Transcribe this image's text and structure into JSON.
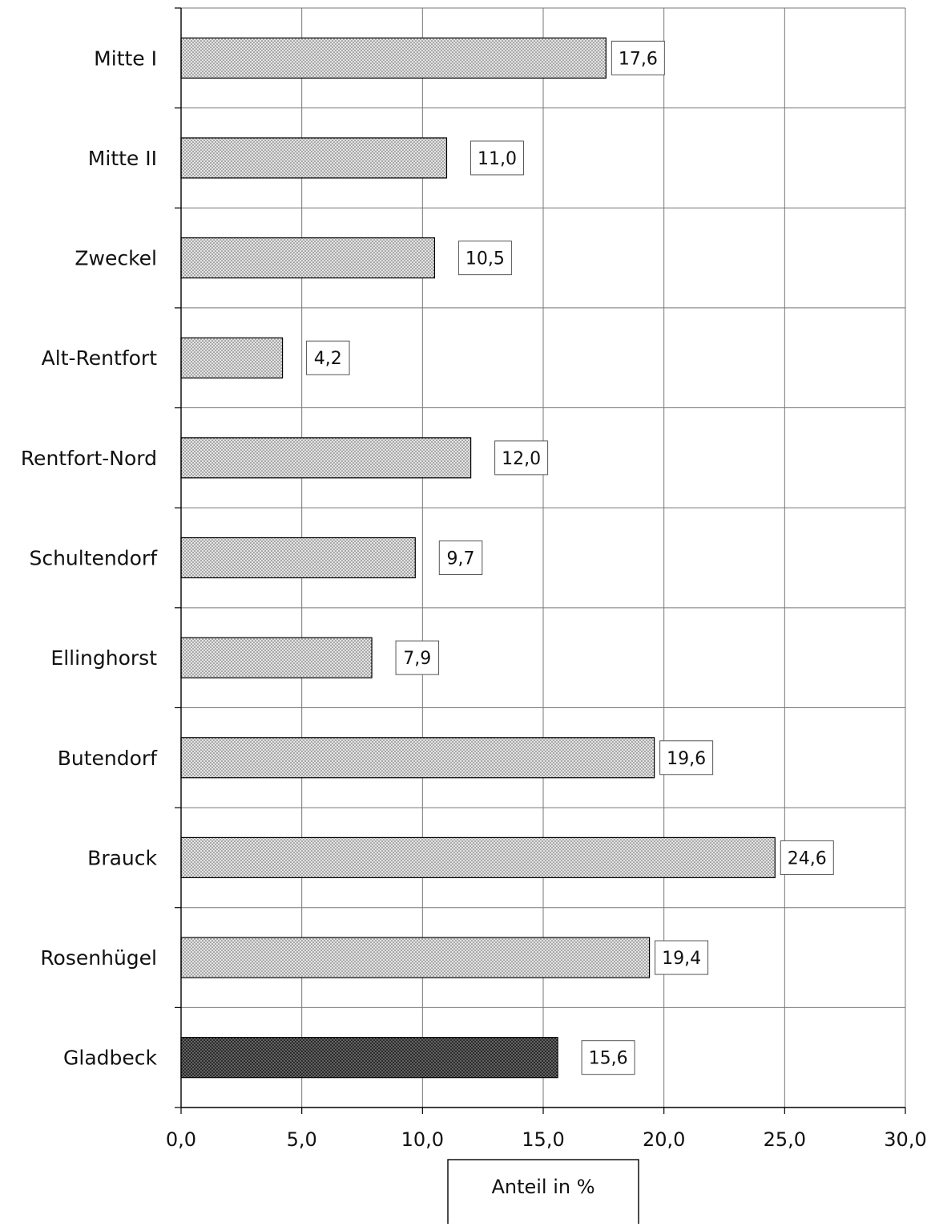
{
  "chart_data": {
    "type": "bar",
    "orientation": "horizontal",
    "categories": [
      "Mitte I",
      "Mitte II",
      "Zweckel",
      "Alt-Rentfort",
      "Rentfort-Nord",
      "Schultendorf",
      "Ellinghorst",
      "Butendorf",
      "Brauck",
      "Rosenhügel",
      "Gladbeck"
    ],
    "values": [
      17.6,
      11.0,
      10.5,
      4.2,
      12.0,
      9.7,
      7.9,
      19.6,
      24.6,
      19.4,
      15.6
    ],
    "value_labels": [
      "17,6",
      "11,0",
      "10,5",
      "4,2",
      "12,0",
      "9,7",
      "7,9",
      "19,6",
      "24,6",
      "19,4",
      "15,6"
    ],
    "highlight_category": "Gladbeck",
    "xlabel": "Anteil in %",
    "ylabel": "",
    "title": "",
    "xlim": [
      0,
      30
    ],
    "xticks": [
      0,
      5,
      10,
      15,
      20,
      25,
      30
    ],
    "xtick_labels": [
      "0,0",
      "5,0",
      "10,0",
      "15,0",
      "20,0",
      "25,0",
      "30,0"
    ],
    "grid": true,
    "legend": "none",
    "colors": {
      "bar_fill": "#e4e4e4",
      "bar_dots": "#555555",
      "highlight_fill": "#2a2a2a",
      "highlight_dots": "#bbbbbb",
      "grid": "#777777",
      "axis": "#000000"
    }
  }
}
